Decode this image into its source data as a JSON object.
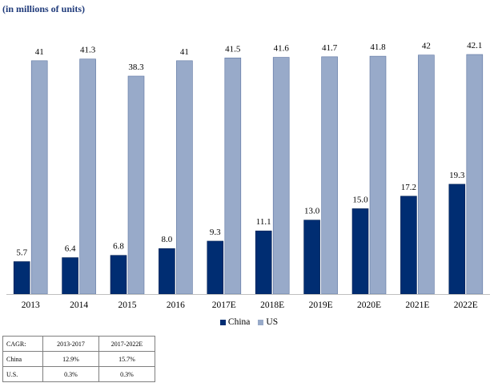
{
  "unit_note": "(in millions of units)",
  "colors": {
    "china": "#002d72",
    "us": "#98aac9"
  },
  "chart_data": {
    "type": "bar",
    "categories": [
      "2013",
      "2014",
      "2015",
      "2016",
      "2017E",
      "2018E",
      "2019E",
      "2020E",
      "2021E",
      "2022E"
    ],
    "series": [
      {
        "name": "China",
        "values": [
          5.7,
          6.4,
          6.8,
          8.0,
          9.3,
          11.1,
          13.0,
          15.0,
          17.2,
          19.3
        ],
        "labels": [
          "5.7",
          "6.4",
          "6.8",
          "8.0",
          "9.3",
          "11.1",
          "13.0",
          "15.0",
          "17.2",
          "19.3"
        ]
      },
      {
        "name": "US",
        "values": [
          41,
          41.3,
          38.3,
          41,
          41.5,
          41.6,
          41.7,
          41.8,
          42,
          42.1
        ],
        "labels": [
          "41",
          "41.3",
          "38.3",
          "41",
          "41.5",
          "41.6",
          "41.7",
          "41.8",
          "42",
          "42.1"
        ]
      }
    ],
    "title": "",
    "xlabel": "",
    "ylabel": "",
    "ylim": [
      0,
      42.1
    ],
    "grid": false,
    "legend": "bottom"
  },
  "cagr_table": {
    "headers": [
      "CAGR:",
      "2013-2017",
      "2017-2022E"
    ],
    "rows": [
      [
        "China",
        "12.9%",
        "15.7%"
      ],
      [
        "U.S.",
        "0.3%",
        "0.3%"
      ]
    ]
  }
}
